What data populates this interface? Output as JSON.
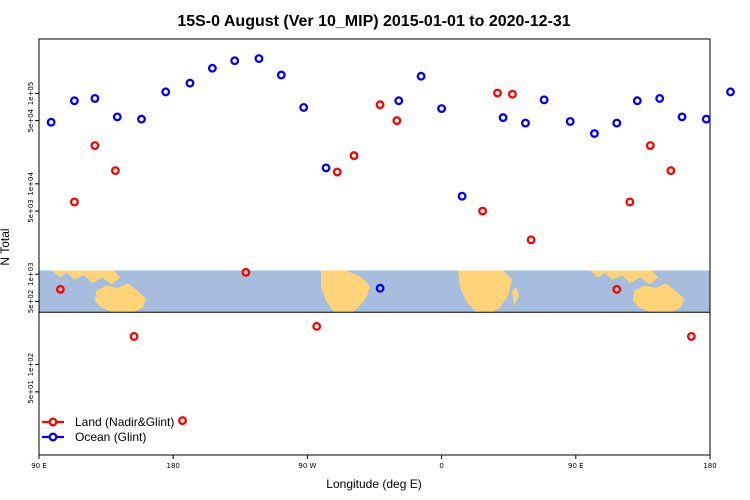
{
  "chart_data": {
    "type": "scatter",
    "title": "15S-0 August (Ver 10_MIP)   2015-01-01 to 2020-12-31",
    "xlabel": "Longitude (deg E)",
    "ylabel": "N Total",
    "xlim": [
      90,
      450
    ],
    "x_ticks": [
      {
        "value": 90,
        "label": "90 E"
      },
      {
        "value": 162,
        "label": "180"
      },
      {
        "value": 234,
        "label": "90 W"
      },
      {
        "value": 306,
        "label": "0"
      },
      {
        "value": 378,
        "label": "90 E"
      },
      {
        "value": 450,
        "label": "180"
      }
    ],
    "y_scale": "log",
    "ylim": [
      10,
      400000
    ],
    "y_ticks": [
      {
        "value": 50,
        "label": "5e+01"
      },
      {
        "value": 100,
        "label": "1e+02"
      },
      {
        "value": 500,
        "label": "5e+02"
      },
      {
        "value": 1000,
        "label": "1e+03"
      },
      {
        "value": 5000,
        "label": "5e+03"
      },
      {
        "value": 10000,
        "label": "1e+04"
      },
      {
        "value": 50000,
        "label": "5e+04"
      },
      {
        "value": 100000,
        "label": "1e+05"
      }
    ],
    "map_band_y": [
      380,
      1100
    ],
    "map_divider_y": 380,
    "grid": false,
    "legend_position": "bottom-left",
    "series": [
      {
        "name": "Land (Nadir&Glint)",
        "color": "#ff0000",
        "points": [
          [
            101.5,
            680
          ],
          [
            109,
            6300
          ],
          [
            120,
            26500
          ],
          [
            131,
            14000
          ],
          [
            141,
            205
          ],
          [
            167,
            24
          ],
          [
            201,
            1050
          ],
          [
            239,
            265
          ],
          [
            250,
            13500
          ],
          [
            259,
            20500
          ],
          [
            273,
            75000
          ],
          [
            282,
            50000
          ],
          [
            328,
            5000
          ],
          [
            336,
            101000
          ],
          [
            344,
            98000
          ],
          [
            354,
            2400
          ],
          [
            400,
            680
          ],
          [
            407,
            6300
          ],
          [
            418,
            26500
          ],
          [
            429,
            14000
          ],
          [
            440,
            205
          ]
        ]
      },
      {
        "name": "Ocean (Glint)",
        "color": "#0000ff",
        "points": [
          [
            96.5,
            48000
          ],
          [
            109,
            83000
          ],
          [
            120,
            88000
          ],
          [
            132,
            55000
          ],
          [
            145,
            52000
          ],
          [
            158,
            104000
          ],
          [
            171,
            130000
          ],
          [
            183,
            190000
          ],
          [
            195,
            230000
          ],
          [
            208,
            243000
          ],
          [
            220,
            160000
          ],
          [
            232,
            70000
          ],
          [
            244,
            15000
          ],
          [
            273,
            700
          ],
          [
            283,
            83000
          ],
          [
            295,
            155000
          ],
          [
            306,
            68000
          ],
          [
            317,
            7300
          ],
          [
            339,
            54000
          ],
          [
            351,
            47000
          ],
          [
            361,
            85000
          ],
          [
            375,
            49000
          ],
          [
            388,
            36000
          ],
          [
            400,
            47000
          ],
          [
            411,
            83000
          ],
          [
            423,
            88000
          ],
          [
            435,
            55000
          ],
          [
            448,
            52000
          ],
          [
            461,
            104000
          ]
        ]
      }
    ]
  }
}
